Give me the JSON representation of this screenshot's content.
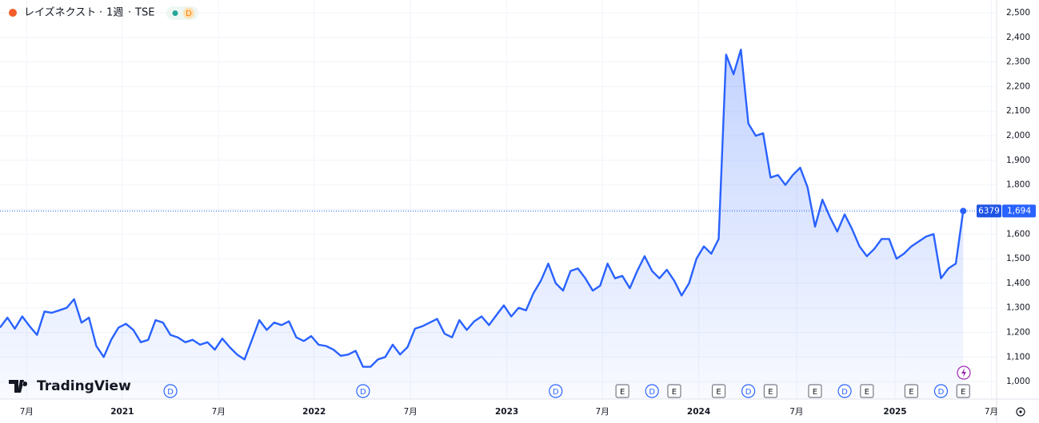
{
  "chart_data": {
    "type": "area",
    "title": "レイズネクスト",
    "interval": "1週",
    "exchange": "TSE",
    "badge": "D",
    "logo": "TradingView",
    "symbol_code": "6379",
    "last_price": {
      "value": 1694,
      "label": "1,694"
    },
    "color": "#2962ff",
    "grid": true,
    "categories": [
      null,
      null,
      null,
      null,
      null,
      null,
      null,
      null,
      null,
      null,
      null,
      null,
      null,
      null,
      null,
      null,
      null,
      null,
      null,
      null,
      null,
      null,
      null,
      null,
      null,
      null,
      null,
      null,
      null,
      null,
      null,
      null,
      null,
      null,
      null,
      null,
      null,
      null,
      null,
      null,
      null,
      null,
      null,
      null,
      null,
      null,
      null,
      null,
      null,
      null,
      null,
      null,
      null,
      null,
      null,
      null,
      null,
      null,
      null,
      null,
      null,
      null,
      null,
      null,
      null,
      null,
      null,
      null,
      null,
      null,
      null,
      null,
      null,
      null,
      null,
      null,
      null,
      null,
      null,
      null,
      null,
      null,
      null,
      null,
      null,
      null,
      null,
      null,
      null,
      null,
      null,
      null,
      null,
      null,
      null,
      null,
      null,
      null,
      null,
      null,
      null,
      null,
      null,
      null,
      null,
      null,
      null,
      null,
      null,
      null,
      null,
      null,
      null,
      null,
      null,
      null,
      null,
      null,
      null,
      null,
      null,
      null,
      null,
      null,
      null,
      null,
      null,
      null,
      null,
      null,
      null
    ],
    "values": [
      1220,
      1260,
      1215,
      1265,
      1225,
      1190,
      1285,
      1280,
      1290,
      1300,
      1335,
      1240,
      1260,
      1145,
      1100,
      1170,
      1220,
      1235,
      1210,
      1160,
      1170,
      1250,
      1240,
      1190,
      1180,
      1160,
      1170,
      1150,
      1160,
      1130,
      1175,
      1140,
      1110,
      1090,
      1170,
      1250,
      1210,
      1240,
      1230,
      1245,
      1180,
      1165,
      1185,
      1150,
      1145,
      1130,
      1105,
      1110,
      1125,
      1060,
      1060,
      1090,
      1100,
      1150,
      1110,
      1140,
      1215,
      1225,
      1240,
      1255,
      1195,
      1180,
      1250,
      1210,
      1245,
      1265,
      1230,
      1270,
      1310,
      1265,
      1300,
      1290,
      1360,
      1410,
      1480,
      1400,
      1370,
      1450,
      1460,
      1420,
      1370,
      1390,
      1480,
      1420,
      1430,
      1380,
      1450,
      1510,
      1450,
      1420,
      1455,
      1410,
      1350,
      1400,
      1500,
      1550,
      1520,
      1580,
      2330,
      2250,
      2350,
      2050,
      2000,
      2010,
      1830,
      1840,
      1800,
      1840,
      1870,
      1790,
      1630,
      1740,
      1670,
      1610,
      1680,
      1620,
      1550,
      1510,
      1540,
      1580,
      1580,
      1500,
      1520,
      1550,
      1570,
      1590,
      1600,
      1420,
      1460,
      1480,
      1694
    ],
    "xlim": [
      0,
      134.4
    ],
    "xticks": [
      {
        "value": 3.6,
        "label": "7月"
      },
      {
        "value": 16.5,
        "label": "2021"
      },
      {
        "value": 29.5,
        "label": "7月"
      },
      {
        "value": 42.4,
        "label": "2022"
      },
      {
        "value": 55.4,
        "label": "7月"
      },
      {
        "value": 68.4,
        "label": "2023"
      },
      {
        "value": 81.3,
        "label": "7月"
      },
      {
        "value": 94.3,
        "label": "2024"
      },
      {
        "value": 107.5,
        "label": "7月"
      },
      {
        "value": 120.8,
        "label": "2025"
      },
      {
        "value": 133.8,
        "label": "7月"
      }
    ],
    "ylim": [
      929,
      2552
    ],
    "yticks": [
      {
        "value": 1000,
        "label": "1,000"
      },
      {
        "value": 1100,
        "label": "1,100"
      },
      {
        "value": 1200,
        "label": "1,200"
      },
      {
        "value": 1300,
        "label": "1,300"
      },
      {
        "value": 1400,
        "label": "1,400"
      },
      {
        "value": 1500,
        "label": "1,500"
      },
      {
        "value": 1600,
        "label": "1,600"
      },
      {
        "value": 1700,
        "label": "1,700"
      },
      {
        "value": 1800,
        "label": "1,800"
      },
      {
        "value": 1900,
        "label": "1,900"
      },
      {
        "value": 2000,
        "label": "2,000"
      },
      {
        "value": 2100,
        "label": "2,100"
      },
      {
        "value": 2200,
        "label": "2,200"
      },
      {
        "value": 2300,
        "label": "2,300"
      },
      {
        "value": 2400,
        "label": "2,400"
      },
      {
        "value": 2500,
        "label": "2,500"
      }
    ],
    "events": [
      {
        "x": 23,
        "label": "D"
      },
      {
        "x": 49,
        "label": "D"
      },
      {
        "x": 75,
        "label": "D"
      },
      {
        "x": 84,
        "label": "E"
      },
      {
        "x": 88,
        "label": "D"
      },
      {
        "x": 91,
        "label": "E"
      },
      {
        "x": 97,
        "label": "E"
      },
      {
        "x": 101,
        "label": "D"
      },
      {
        "x": 104,
        "label": "E"
      },
      {
        "x": 110,
        "label": "E"
      },
      {
        "x": 114,
        "label": "D"
      },
      {
        "x": 117,
        "label": "E"
      },
      {
        "x": 123,
        "label": "E"
      },
      {
        "x": 127,
        "label": "D"
      },
      {
        "x": 130,
        "label": "E"
      }
    ]
  }
}
